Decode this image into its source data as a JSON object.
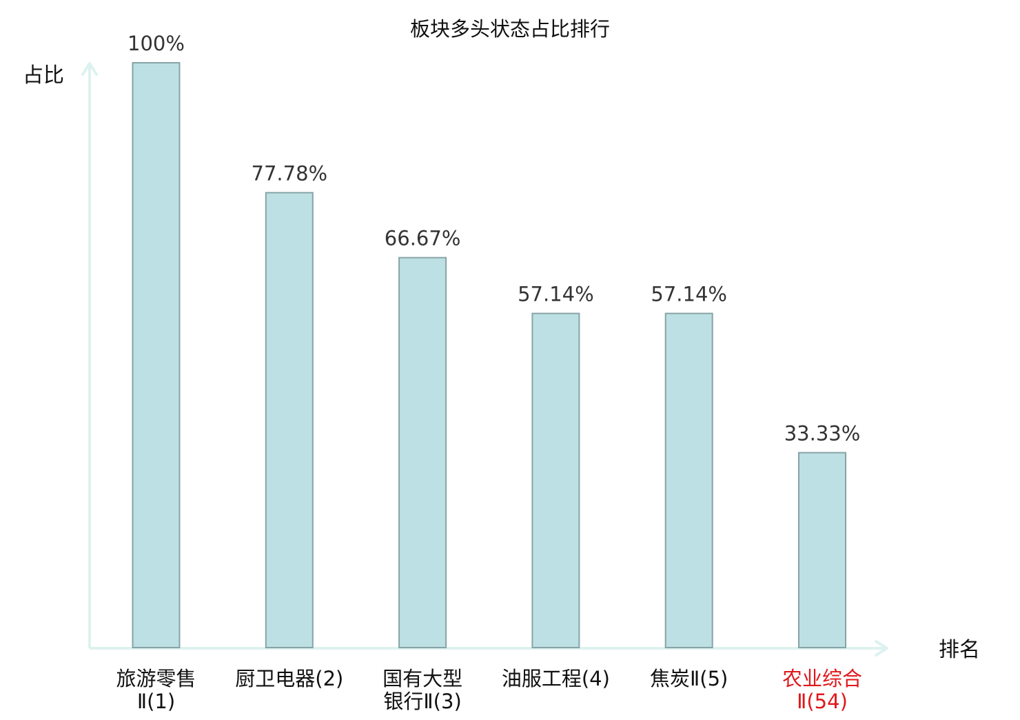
{
  "chart_data": {
    "type": "bar",
    "title": "板块多头状态占比排行",
    "ylabel": "占比",
    "xlabel": "排名",
    "ylim": [
      0,
      100
    ],
    "grid": false,
    "categories": [
      {
        "lines": [
          "旅游零售",
          "Ⅱ(1)"
        ],
        "highlight": false
      },
      {
        "lines": [
          "厨卫电器(2)"
        ],
        "highlight": false
      },
      {
        "lines": [
          "国有大型",
          "银行Ⅱ(3)"
        ],
        "highlight": false
      },
      {
        "lines": [
          "油服工程(4)"
        ],
        "highlight": false
      },
      {
        "lines": [
          "焦炭Ⅱ(5)"
        ],
        "highlight": false
      },
      {
        "lines": [
          "农业综合",
          "Ⅱ(54)"
        ],
        "highlight": true
      }
    ],
    "values": [
      100,
      77.78,
      66.67,
      57.14,
      57.14,
      33.33
    ],
    "value_labels": [
      "100%",
      "77.78%",
      "66.67%",
      "57.14%",
      "57.14%",
      "33.33%"
    ],
    "colors": {
      "bar_fill": "#bce0e3",
      "bar_stroke": "#87a3a6",
      "axis": "#ddf2ef",
      "text": "#111111",
      "value_text": "#333333",
      "highlight": "#e0171b"
    }
  }
}
